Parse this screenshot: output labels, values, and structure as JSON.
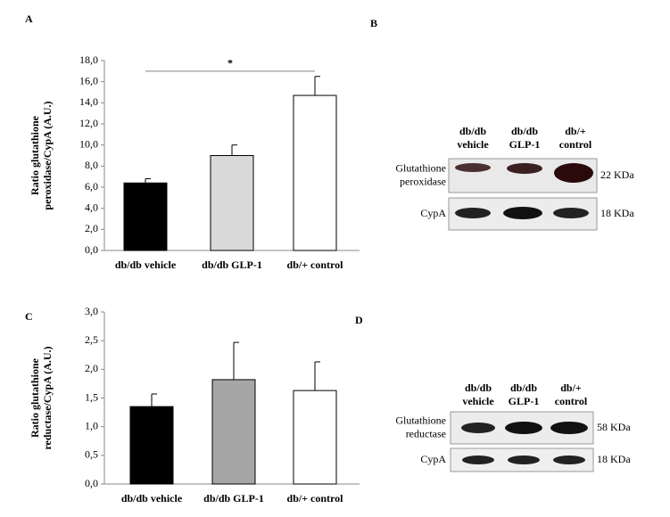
{
  "panels": [
    "A",
    "B",
    "C",
    "D"
  ],
  "chart_data": [
    {
      "type": "bar",
      "ylabel": [
        "Ratio glutathione",
        "peroxidase/CypA (A.U.)"
      ],
      "categories": [
        "db/db vehicle",
        "db/db GLP-1",
        "db/+ control"
      ],
      "values": [
        6.4,
        9.0,
        14.7
      ],
      "errors": [
        0.4,
        1.0,
        1.8
      ],
      "colors": [
        "#000000",
        "#d9d9d9",
        "#ffffff"
      ],
      "ylim": [
        0,
        18
      ],
      "yticks": [
        {
          "value": 0,
          "label": "0,0"
        },
        {
          "value": 2,
          "label": "2,0"
        },
        {
          "value": 4,
          "label": "4,0"
        },
        {
          "value": 6,
          "label": "6,0"
        },
        {
          "value": 8,
          "label": "8,0"
        },
        {
          "value": 10,
          "label": "10,0"
        },
        {
          "value": 12,
          "label": "12,0"
        },
        {
          "value": 14,
          "label": "14,0"
        },
        {
          "value": 16,
          "label": "16,0"
        },
        {
          "value": 18,
          "label": "18,0"
        }
      ],
      "annotations": [
        {
          "text": "*",
          "from": 0,
          "to": 2,
          "y": 17
        }
      ]
    },
    {
      "type": "bar",
      "ylabel": [
        "Ratio glutathione",
        "reductase/CypA (A.U.)"
      ],
      "categories": [
        "db/db vehicle",
        "db/db GLP-1",
        "db/+ control"
      ],
      "values": [
        1.35,
        1.82,
        1.63
      ],
      "errors": [
        0.22,
        0.65,
        0.5
      ],
      "colors": [
        "#000000",
        "#a6a6a6",
        "#ffffff"
      ],
      "ylim": [
        0,
        3
      ],
      "yticks": [
        {
          "value": 0,
          "label": "0,0"
        },
        {
          "value": 0.5,
          "label": "0,5"
        },
        {
          "value": 1,
          "label": "1,0"
        },
        {
          "value": 1.5,
          "label": "1,5"
        },
        {
          "value": 2,
          "label": "2,0"
        },
        {
          "value": 2.5,
          "label": "2,5"
        },
        {
          "value": 3,
          "label": "3,0"
        }
      ],
      "annotations": []
    }
  ],
  "blots": [
    {
      "columns": [
        [
          "db/db",
          "vehicle"
        ],
        [
          "db/db",
          "GLP-1"
        ],
        [
          "db/+",
          "control"
        ]
      ],
      "rows": [
        {
          "label": [
            "Glutathione",
            "peroxidase"
          ],
          "size": "22 KDa"
        },
        {
          "label": [
            "CypA"
          ],
          "size": "18 KDa"
        }
      ]
    },
    {
      "columns": [
        [
          "db/db",
          "vehicle"
        ],
        [
          "db/db",
          "GLP-1"
        ],
        [
          "db/+",
          "control"
        ]
      ],
      "rows": [
        {
          "label": [
            "Glutathione",
            "reductase"
          ],
          "size": "58 KDa"
        },
        {
          "label": [
            "CypA"
          ],
          "size": "18 KDa"
        }
      ]
    }
  ]
}
